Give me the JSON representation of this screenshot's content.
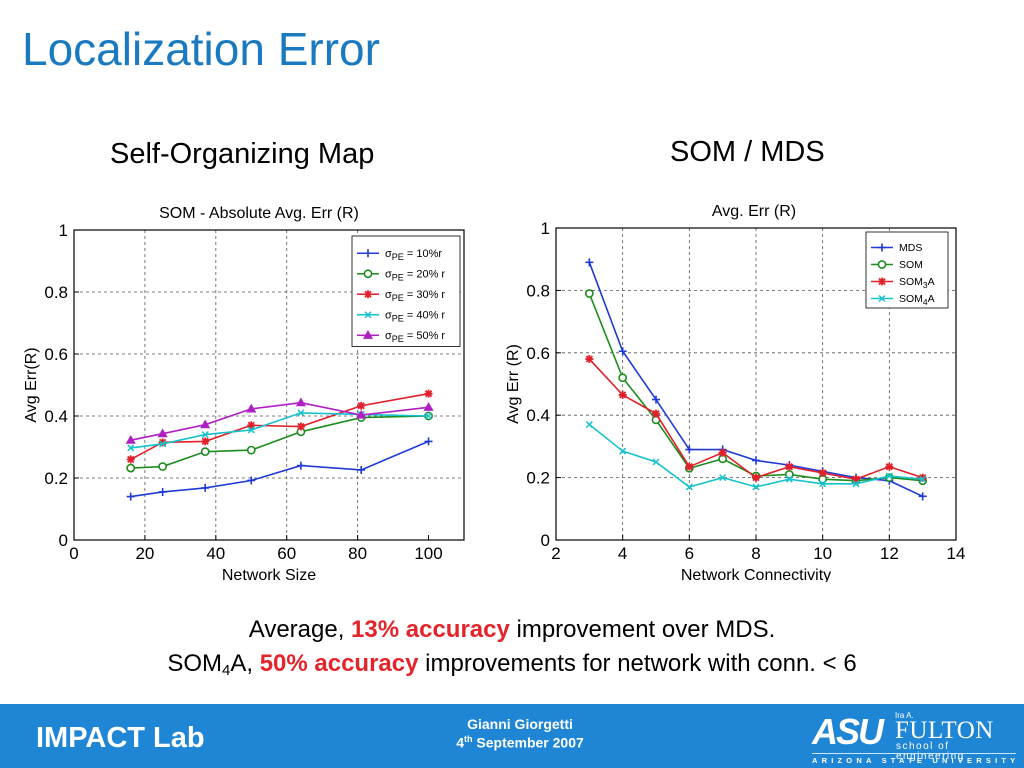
{
  "slide": {
    "title": "Localization Error",
    "subtitle_left": "Self-Organizing Map",
    "subtitle_right": "SOM / MDS",
    "bottom": {
      "line1_pre": "Average, ",
      "line1_highlight": "13% accuracy",
      "line1_post": " improvement over MDS.",
      "line2_pre_a": "SOM",
      "line2_sub": "4",
      "line2_pre_b": "A, ",
      "line2_highlight": "50% accuracy",
      "line2_post": " improvements for network with conn. < 6"
    },
    "footer": {
      "lab": "IMPACT Lab",
      "author": "Gianni Giorgetti",
      "date_day": "4",
      "date_sup": "th",
      "date_rest": " September 2007",
      "logo_asu": "ASU",
      "logo_ira": "Ira A.",
      "logo_fulton": "FULTON",
      "logo_school": "school of engineering",
      "logo_university": "ARIZONA STATE UNIVERSITY"
    },
    "colors": {
      "title": "#1a7ac0",
      "footer": "#1f86d6",
      "highlight": "#e3242b"
    }
  },
  "chart_data": [
    {
      "type": "line",
      "title": "SOM - Absolute Avg. Err (R)",
      "xlabel": "Network Size",
      "ylabel": "Avg Err(R)",
      "xlim": [
        0,
        110
      ],
      "ylim": [
        0,
        1
      ],
      "xticks": [
        0,
        20,
        40,
        60,
        80,
        100
      ],
      "xtick_labels": [
        "0",
        "20",
        "40",
        "60",
        "80",
        "100"
      ],
      "yticks": [
        0,
        0.2,
        0.4,
        0.6,
        0.8,
        1
      ],
      "ytick_labels": [
        "0",
        "0.2",
        "0.4",
        "0.6",
        "0.8",
        "1"
      ],
      "grid": true,
      "legend_position": "top-right",
      "series": [
        {
          "name": "σ",
          "name_sub": "PE",
          "name_rest": " = 10%r",
          "color": "#1f3ad6",
          "marker": "plus",
          "x": [
            16,
            25,
            37,
            50,
            64,
            81,
            100
          ],
          "y": [
            0.14,
            0.155,
            0.168,
            0.192,
            0.24,
            0.226,
            0.318
          ]
        },
        {
          "name": "σ",
          "name_sub": "PE",
          "name_rest": " = 20% r",
          "color": "#1e8c1e",
          "marker": "circle",
          "x": [
            16,
            25,
            37,
            50,
            64,
            81,
            100
          ],
          "y": [
            0.232,
            0.237,
            0.285,
            0.29,
            0.349,
            0.395,
            0.4
          ]
        },
        {
          "name": "σ",
          "name_sub": "PE",
          "name_rest": " = 30% r",
          "color": "#e0202a",
          "marker": "star",
          "x": [
            16,
            25,
            37,
            50,
            64,
            81,
            100
          ],
          "y": [
            0.26,
            0.315,
            0.318,
            0.37,
            0.366,
            0.433,
            0.472
          ]
        },
        {
          "name": "σ",
          "name_sub": "PE",
          "name_rest": " = 40% r",
          "color": "#17c2cc",
          "marker": "cross",
          "x": [
            16,
            25,
            37,
            50,
            64,
            81,
            100
          ],
          "y": [
            0.297,
            0.31,
            0.34,
            0.355,
            0.41,
            0.405,
            0.4
          ]
        },
        {
          "name": "σ",
          "name_sub": "PE",
          "name_rest": " = 50% r",
          "color": "#b01fc4",
          "marker": "triangle",
          "x": [
            16,
            25,
            37,
            50,
            64,
            81,
            100
          ],
          "y": [
            0.322,
            0.343,
            0.372,
            0.423,
            0.443,
            0.403,
            0.428
          ]
        }
      ]
    },
    {
      "type": "line",
      "title": "Avg. Err (R)",
      "xlabel": "Network Connectivity",
      "ylabel": "Avg Err (R)",
      "xlim": [
        2,
        14
      ],
      "ylim": [
        0,
        1
      ],
      "xticks": [
        2,
        4,
        6,
        8,
        10,
        12,
        14
      ],
      "xtick_labels": [
        "2",
        "4",
        "6",
        "8",
        "10",
        "12",
        "14"
      ],
      "yticks": [
        0,
        0.2,
        0.4,
        0.6,
        0.8,
        1
      ],
      "ytick_labels": [
        "0",
        "0.2",
        "0.4",
        "0.6",
        "0.8",
        "1"
      ],
      "grid": true,
      "legend_position": "top-right",
      "series": [
        {
          "name": "MDS",
          "name_sub": "",
          "name_rest": "",
          "color": "#1f3ad6",
          "marker": "plus",
          "x": [
            3,
            4,
            5,
            6,
            7,
            8,
            9,
            10,
            11,
            12,
            13
          ],
          "y": [
            0.89,
            0.605,
            0.45,
            0.29,
            0.29,
            0.255,
            0.24,
            0.22,
            0.2,
            0.19,
            0.14
          ]
        },
        {
          "name": "SOM",
          "name_sub": "",
          "name_rest": "",
          "color": "#1e8c1e",
          "marker": "circle",
          "x": [
            3,
            4,
            5,
            6,
            7,
            8,
            9,
            10,
            11,
            12,
            13
          ],
          "y": [
            0.79,
            0.52,
            0.385,
            0.23,
            0.26,
            0.205,
            0.21,
            0.195,
            0.19,
            0.2,
            0.19
          ]
        },
        {
          "name": "SOM",
          "name_sub": "3",
          "name_rest": "A",
          "color": "#e0202a",
          "marker": "star",
          "x": [
            3,
            4,
            5,
            6,
            7,
            8,
            9,
            10,
            11,
            12,
            13
          ],
          "y": [
            0.58,
            0.465,
            0.405,
            0.235,
            0.28,
            0.2,
            0.235,
            0.215,
            0.195,
            0.235,
            0.2
          ]
        },
        {
          "name": "SOM",
          "name_sub": "4",
          "name_rest": "A",
          "color": "#17c2cc",
          "marker": "cross",
          "x": [
            3,
            4,
            5,
            6,
            7,
            8,
            9,
            10,
            11,
            12,
            13
          ],
          "y": [
            0.37,
            0.285,
            0.25,
            0.17,
            0.2,
            0.17,
            0.195,
            0.18,
            0.18,
            0.205,
            0.195
          ]
        }
      ]
    }
  ]
}
